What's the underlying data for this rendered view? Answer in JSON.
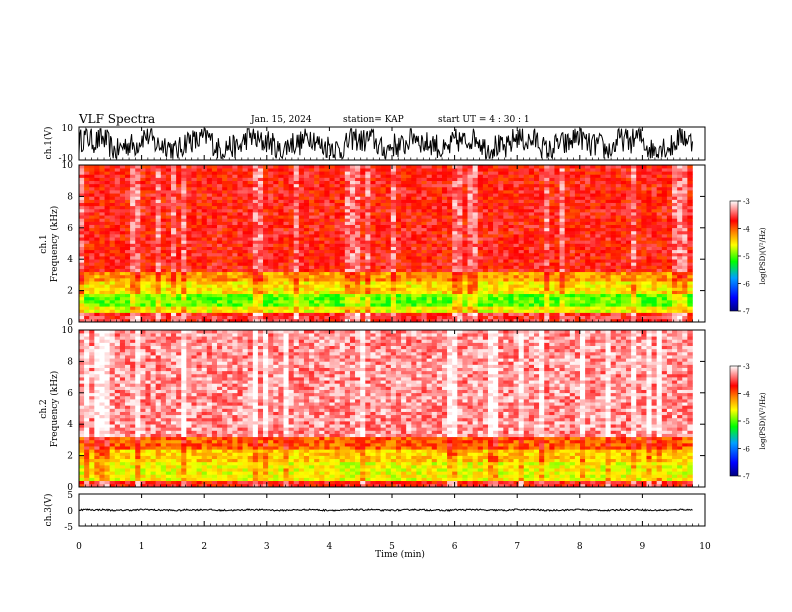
{
  "header": {
    "title": "VLF Spectra",
    "date": "Jan. 15, 2024",
    "station": "station= KAP",
    "start": "start UT =  4 : 30 : 1"
  },
  "chart_data": [
    {
      "type": "line",
      "panel": "ch1-waveform",
      "ylabel": "ch.1(V)",
      "ylim": [
        -10,
        10
      ],
      "y_ticks": [
        "10",
        "-10"
      ],
      "xlim": [
        0,
        10
      ],
      "series": [
        {
          "amplitude_range": [
            -9,
            9
          ],
          "end_min": 9.8
        }
      ]
    },
    {
      "type": "heatmap",
      "panel": "ch1-spectrogram",
      "ylabel_line1": "ch.1",
      "ylabel_line2": "Frequency (kHz)",
      "ylim": [
        0,
        10
      ],
      "y_ticks": [
        "0",
        "2",
        "4",
        "6",
        "8",
        "10"
      ],
      "xlim": [
        0,
        9.8
      ],
      "bands": [
        {
          "from_khz": 0.0,
          "to_khz": 0.6,
          "level": -3.6
        },
        {
          "from_khz": 0.6,
          "to_khz": 1.1,
          "level": -4.6
        },
        {
          "from_khz": 1.1,
          "to_khz": 1.9,
          "level": -5.0
        },
        {
          "from_khz": 1.9,
          "to_khz": 2.6,
          "level": -4.5
        },
        {
          "from_khz": 2.6,
          "to_khz": 3.3,
          "level": -4.2
        },
        {
          "from_khz": 3.3,
          "to_khz": 10.0,
          "level": -3.7
        }
      ],
      "colorbar": {
        "label": "log(PSD)(V²/Hz)",
        "ticks": [
          "-3",
          "-4",
          "-5",
          "-6",
          "-7"
        ],
        "range": [
          -7,
          -3
        ]
      }
    },
    {
      "type": "heatmap",
      "panel": "ch2-spectrogram",
      "ylabel_line1": "ch.2",
      "ylabel_line2": "Frequency (kHz)",
      "ylim": [
        0,
        10
      ],
      "y_ticks": [
        "0",
        "2",
        "4",
        "6",
        "8",
        "10"
      ],
      "xlim": [
        0,
        9.8
      ],
      "bands": [
        {
          "from_khz": 0.0,
          "to_khz": 0.5,
          "level": -3.7
        },
        {
          "from_khz": 0.5,
          "to_khz": 1.6,
          "level": -4.6
        },
        {
          "from_khz": 1.6,
          "to_khz": 2.5,
          "level": -4.4
        },
        {
          "from_khz": 2.5,
          "to_khz": 3.2,
          "level": -4.0
        },
        {
          "from_khz": 3.2,
          "to_khz": 10.0,
          "level": -3.3
        }
      ],
      "colorbar": {
        "label": "log(PSD)(V²/Hz)",
        "ticks": [
          "-3",
          "-4",
          "-5",
          "-6",
          "-7"
        ],
        "range": [
          -7,
          -3
        ]
      }
    },
    {
      "type": "line",
      "panel": "ch3-waveform",
      "ylabel": "ch.3(V)",
      "ylim": [
        -5,
        5
      ],
      "y_ticks": [
        "5",
        "0",
        "-5"
      ],
      "xlim": [
        0,
        10
      ],
      "series": [
        {
          "amplitude_range": [
            -0.3,
            0.3
          ],
          "end_min": 9.8
        }
      ]
    }
  ],
  "x_axis": {
    "label": "Time (min)",
    "range": [
      0,
      10
    ],
    "ticks": [
      "0",
      "1",
      "2",
      "3",
      "4",
      "5",
      "6",
      "7",
      "8",
      "9",
      "10"
    ]
  }
}
